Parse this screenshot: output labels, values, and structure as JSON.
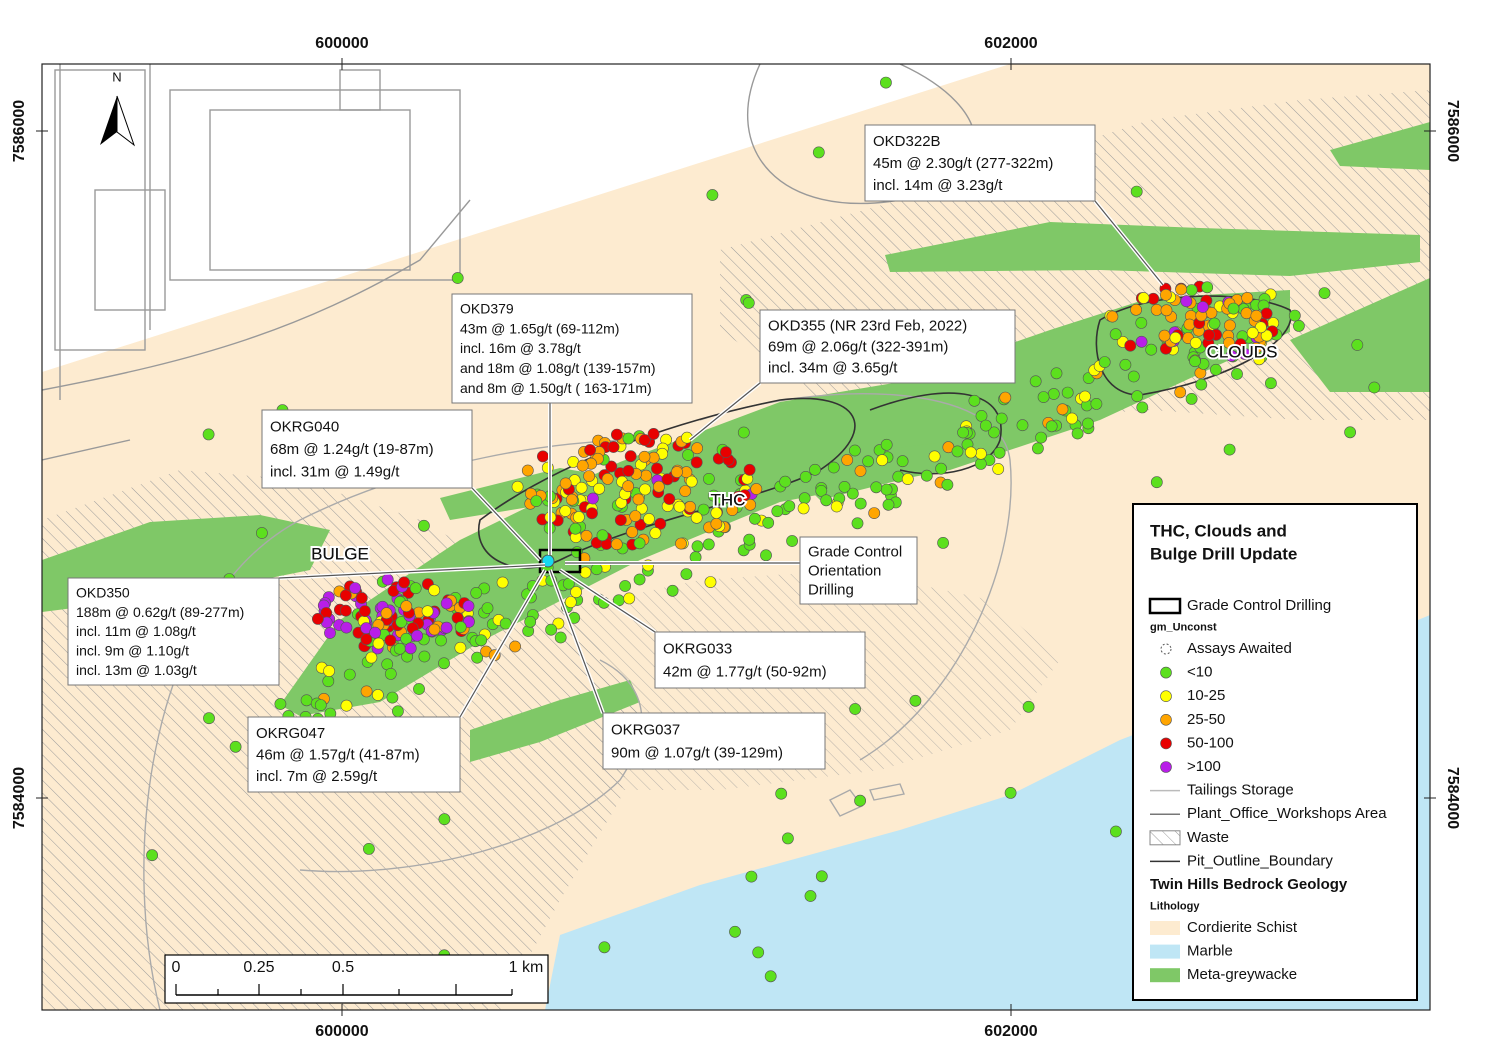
{
  "map": {
    "x_coords": [
      600000,
      602000
    ],
    "y_coords": [
      7586000,
      7584000
    ],
    "north_label": "N",
    "place_labels": [
      "BULGE",
      "THC",
      "CLOUDS"
    ],
    "callouts": [
      {
        "lines": [
          "OKD322B",
          "45m @ 2.30g/t (277-322m)",
          "incl. 14m @ 3.23g/t"
        ]
      },
      {
        "lines": [
          "OKD379",
          "43m @ 1.65g/t (69-112m)",
          "incl. 16m @ 3.78g/t",
          "and 18m @ 1.08g/t (139-157m)",
          "and 8m @ 1.50g/t ( 163-171m)"
        ]
      },
      {
        "lines": [
          "OKD355 (NR 23rd Feb, 2022)",
          "69m @ 2.06g/t (322-391m)",
          "incl. 34m @ 3.65g/t"
        ]
      },
      {
        "lines": [
          "OKRG040",
          "68m @ 1.24g/t (19-87m)",
          "incl. 31m @ 1.49g/t"
        ]
      },
      {
        "lines": [
          "Grade Control",
          "Orientation",
          "Drilling"
        ]
      },
      {
        "lines": [
          "OKD350",
          "188m @ 0.62g/t (89-277m)",
          "incl. 11m @ 1.08g/t",
          "incl. 9m @ 1.10g/t",
          "incl. 13m @ 1.03g/t"
        ]
      },
      {
        "lines": [
          "OKRG033",
          "42m @ 1.77g/t (50-92m)"
        ]
      },
      {
        "lines": [
          "OKRG047",
          "46m @ 1.57g/t (41-87m)",
          "incl. 7m @ 2.59g/t"
        ]
      },
      {
        "lines": [
          "OKRG037",
          "90m @ 1.07g/t (39-129m)"
        ]
      }
    ],
    "scale_bar": [
      "0",
      "0.25",
      "0.5",
      "1 km"
    ],
    "legend": {
      "title_lines": [
        "THC, Clouds and",
        "Bulge Drill Update"
      ],
      "entries": [
        {
          "label": "Grade Control Drilling",
          "symbol": "box"
        },
        {
          "label": "gm_Unconst",
          "symbol": "subheader"
        },
        {
          "label": "Assays Awaited",
          "symbol": "open-dot"
        },
        {
          "label": "<10",
          "symbol": "dot",
          "color": "#5ce01e"
        },
        {
          "label": "10-25",
          "symbol": "dot",
          "color": "#ffff00"
        },
        {
          "label": "25-50",
          "symbol": "dot",
          "color": "#ffa500"
        },
        {
          "label": "50-100",
          "symbol": "dot",
          "color": "#e80000"
        },
        {
          "label": ">100",
          "symbol": "dot",
          "color": "#b81ee8"
        },
        {
          "label": "Tailings Storage",
          "symbol": "line",
          "color": "#bbbbbb"
        },
        {
          "label": "Plant_Office_Workshops Area",
          "symbol": "line",
          "color": "#777777"
        },
        {
          "label": "Waste",
          "symbol": "hatch"
        },
        {
          "label": "Pit_Outline_Boundary",
          "symbol": "line",
          "color": "#333333"
        },
        {
          "label": "Twin Hills Bedrock Geology",
          "symbol": "header"
        },
        {
          "label": "Lithology",
          "symbol": "subheader"
        },
        {
          "label": "Cordierite Schist",
          "symbol": "fill",
          "color": "#fdebd0"
        },
        {
          "label": "Marble",
          "symbol": "fill",
          "color": "#bfe6f5"
        },
        {
          "label": "Meta-greywacke",
          "symbol": "fill",
          "color": "#7fc867"
        }
      ]
    }
  }
}
